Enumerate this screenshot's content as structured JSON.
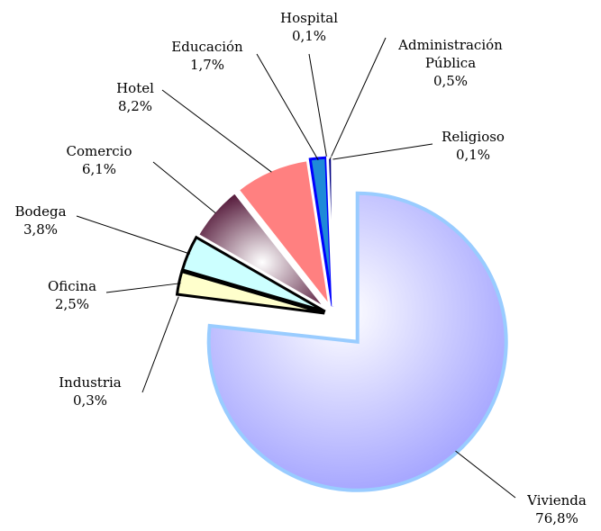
{
  "chart_data": {
    "type": "pie",
    "categories": [
      "Vivienda",
      "Industria",
      "Oficina",
      "Bodega",
      "Comercio",
      "Hotel",
      "Educación",
      "Hospital",
      "Administración Pública",
      "Religioso"
    ],
    "values": [
      76.8,
      0.3,
      2.5,
      3.8,
      6.1,
      8.2,
      1.7,
      0.1,
      0.5,
      0.1
    ],
    "value_labels": [
      "76,8%",
      "0,3%",
      "2,5%",
      "3,8%",
      "6,1%",
      "8,2%",
      "1,7%",
      "0,1%",
      "0,5%",
      "0,1%"
    ],
    "colors": [
      "#a6a6ff",
      "#7b2d50",
      "#ffffcc",
      "#ccffff",
      "#6a3a58",
      "#ff8080",
      "#1f8ad8",
      "#3060c0",
      "#000080",
      "#20204a"
    ]
  }
}
